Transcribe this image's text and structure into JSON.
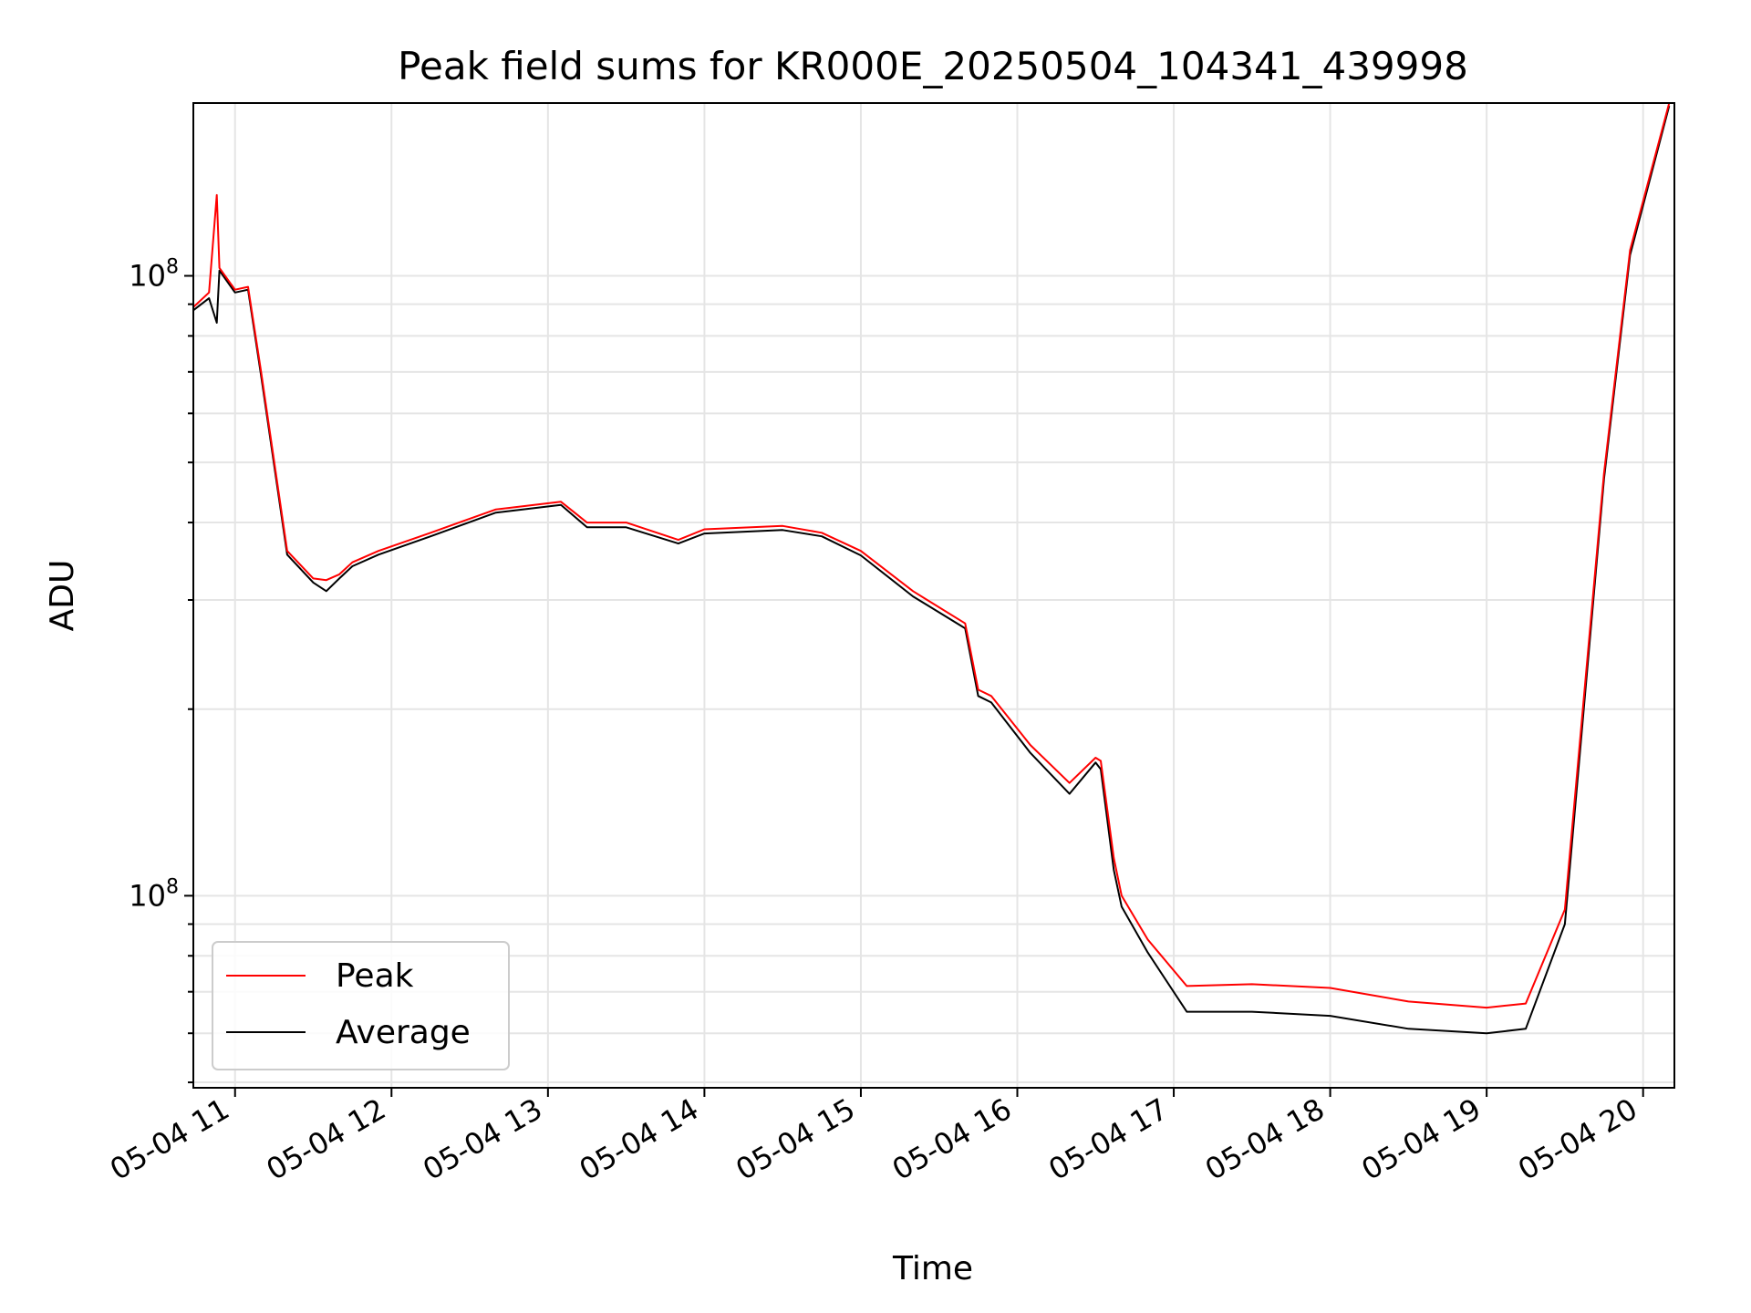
{
  "chart_data": {
    "type": "line",
    "title": "Peak field sums for KR000E_20250504_104341_439998",
    "xlabel": "Time",
    "ylabel": "ADU",
    "yscale": "log",
    "grid": true,
    "legend_position": "lower-left",
    "x_ticks": [
      "05-04 11",
      "05-04 12",
      "05-04 13",
      "05-04 14",
      "05-04 15",
      "05-04 16",
      "05-04 17",
      "05-04 18",
      "05-04 19",
      "05-04 20"
    ],
    "y_tick_label": {
      "base": "10",
      "exponent": "8"
    },
    "xlim": [
      "2025-05-04 10:44",
      "2025-05-04 20:12"
    ],
    "ylim": [
      4900000,
      190000000
    ],
    "x": [
      "2025-05-04 10:44",
      "2025-05-04 10:50",
      "2025-05-04 10:53",
      "2025-05-04 10:54",
      "2025-05-04 11:00",
      "2025-05-04 11:05",
      "2025-05-04 11:10",
      "2025-05-04 11:20",
      "2025-05-04 11:30",
      "2025-05-04 11:35",
      "2025-05-04 11:40",
      "2025-05-04 11:45",
      "2025-05-04 11:55",
      "2025-05-04 12:15",
      "2025-05-04 12:40",
      "2025-05-04 13:05",
      "2025-05-04 13:15",
      "2025-05-04 13:30",
      "2025-05-04 13:50",
      "2025-05-04 14:00",
      "2025-05-04 14:30",
      "2025-05-04 14:45",
      "2025-05-04 15:00",
      "2025-05-04 15:20",
      "2025-05-04 15:40",
      "2025-05-04 15:45",
      "2025-05-04 15:50",
      "2025-05-04 16:05",
      "2025-05-04 16:20",
      "2025-05-04 16:30",
      "2025-05-04 16:32",
      "2025-05-04 16:37",
      "2025-05-04 16:40",
      "2025-05-04 16:50",
      "2025-05-04 17:05",
      "2025-05-04 17:30",
      "2025-05-04 18:00",
      "2025-05-04 18:30",
      "2025-05-04 19:00",
      "2025-05-04 19:15",
      "2025-05-04 19:30",
      "2025-05-04 19:45",
      "2025-05-04 19:55",
      "2025-05-04 20:10"
    ],
    "series": [
      {
        "name": "Peak",
        "color": "#ff0000",
        "values": [
          89000000,
          94000000,
          135000000,
          103000000,
          95000000,
          96000000,
          70000000,
          36000000,
          32500000,
          32300000,
          33000000,
          34500000,
          36000000,
          38500000,
          42000000,
          43200000,
          40000000,
          40000000,
          37500000,
          39000000,
          39500000,
          38500000,
          36000000,
          31000000,
          27500000,
          21500000,
          21000000,
          17500000,
          15200000,
          16700000,
          16500000,
          11500000,
          10000000,
          8500000,
          7150000,
          7200000,
          7100000,
          6750000,
          6600000,
          6700000,
          9500000,
          48000000,
          110000000,
          190000000
        ]
      },
      {
        "name": "Average",
        "color": "#000000",
        "values": [
          88000000,
          92000000,
          84000000,
          102000000,
          94000000,
          95000000,
          69000000,
          35500000,
          32000000,
          31000000,
          32500000,
          34000000,
          35500000,
          38000000,
          41500000,
          42700000,
          39300000,
          39300000,
          37000000,
          38400000,
          38900000,
          38000000,
          35400000,
          30400000,
          27000000,
          21000000,
          20500000,
          17000000,
          14600000,
          16400000,
          16000000,
          11000000,
          9600000,
          8100000,
          6500000,
          6500000,
          6400000,
          6100000,
          6000000,
          6100000,
          9000000,
          47000000,
          108000000,
          188000000
        ]
      }
    ]
  }
}
